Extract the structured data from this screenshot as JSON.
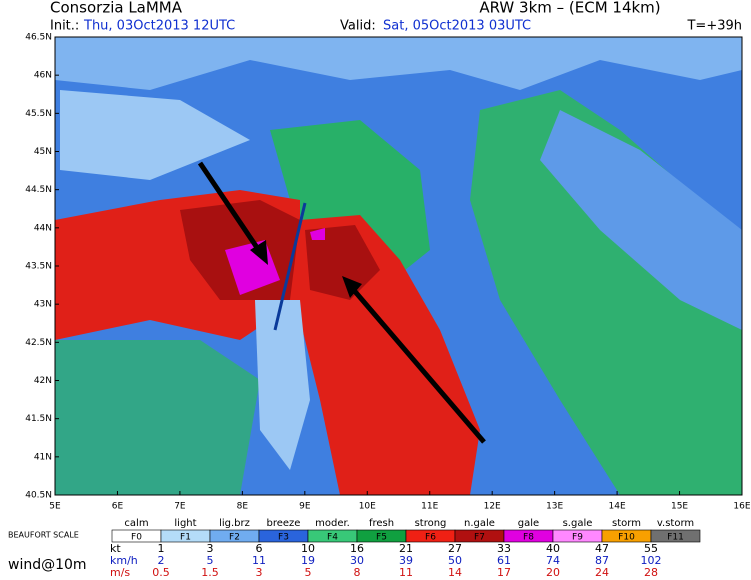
{
  "header": {
    "left_title": "Consorzia LaMMA",
    "right_title": "ARW 3km – (ECM 14km)",
    "init_label": "Init.:",
    "init_value": "Thu, 03Oct2013 12UTC",
    "valid_label": "Valid:",
    "valid_value": "Sat, 05Oct2013 03UTC",
    "forecast_step": "T=+39h"
  },
  "map": {
    "lat_ticks": [
      "46.5N",
      "46N",
      "45.5N",
      "45N",
      "44.5N",
      "44N",
      "43.5N",
      "43N",
      "42.5N",
      "42N",
      "41.5N",
      "41N",
      "40.5N"
    ],
    "lon_ticks": [
      "5E",
      "6E",
      "7E",
      "8E",
      "9E",
      "10E",
      "11E",
      "12E",
      "13E",
      "14E",
      "15E",
      "16E"
    ]
  },
  "legend": {
    "scale_title": "BEAUFORT SCALE",
    "variable": "wind@10m",
    "classes": [
      {
        "name": "calm",
        "force": "F0",
        "color": "#ffffff"
      },
      {
        "name": "light",
        "force": "F1",
        "color": "#b4dcf8"
      },
      {
        "name": "lig.brz",
        "force": "F2",
        "color": "#70acf0"
      },
      {
        "name": "breeze",
        "force": "F3",
        "color": "#2a64dc"
      },
      {
        "name": "moder.",
        "force": "F4",
        "color": "#38c878"
      },
      {
        "name": "fresh",
        "force": "F5",
        "color": "#10a040"
      },
      {
        "name": "strong",
        "force": "F6",
        "color": "#f02014"
      },
      {
        "name": "n.gale",
        "force": "F7",
        "color": "#b01010"
      },
      {
        "name": "gale",
        "force": "F8",
        "color": "#e000e0"
      },
      {
        "name": "s.gale",
        "force": "F9",
        "color": "#ff88ff"
      },
      {
        "name": "storm",
        "force": "F10",
        "color": "#f8a000"
      },
      {
        "name": "v.storm",
        "force": "F11",
        "color": "#707070"
      }
    ],
    "units": [
      {
        "unit": "kt",
        "color": "#000000",
        "values": [
          1,
          3,
          6,
          10,
          16,
          21,
          27,
          33,
          40,
          47,
          55
        ]
      },
      {
        "unit": "km/h",
        "color": "#1020c0",
        "values": [
          2,
          5,
          11,
          19,
          30,
          39,
          50,
          61,
          74,
          87,
          102
        ]
      },
      {
        "unit": "m/s",
        "color": "#d01010",
        "values": [
          0.5,
          1.5,
          3,
          5,
          8,
          11,
          14,
          17,
          20,
          24,
          28
        ]
      }
    ]
  }
}
